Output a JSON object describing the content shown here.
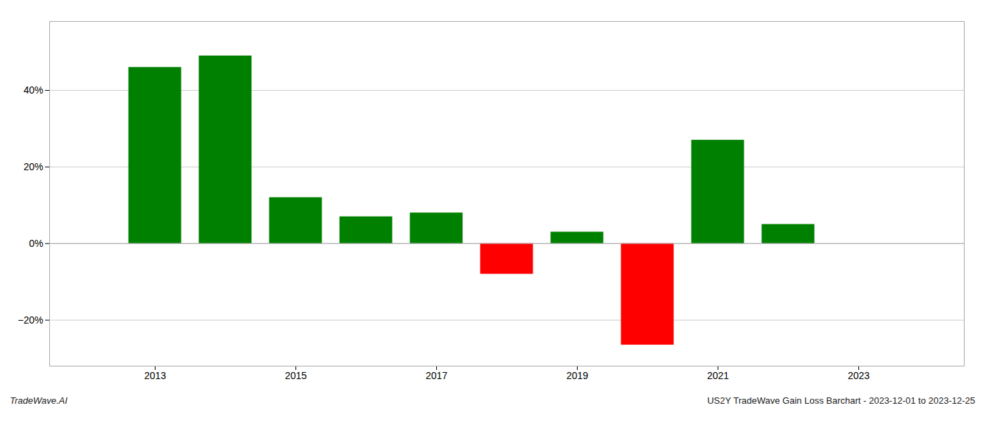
{
  "chart_data": {
    "type": "bar",
    "title": "US2Y TradeWave Gain Loss Barchart - 2023-12-01 to 2023-12-25",
    "annotations": [
      "TradeWave.AI"
    ],
    "x": [
      2013,
      2014,
      2015,
      2016,
      2017,
      2018,
      2019,
      2020,
      2021,
      2022
    ],
    "values": [
      0.46,
      0.49,
      0.12,
      0.07,
      0.08,
      -0.08,
      0.03,
      -0.265,
      0.27,
      0.05
    ],
    "colors": [
      "#008000",
      "#008000",
      "#008000",
      "#008000",
      "#008000",
      "#ff0000",
      "#008000",
      "#ff0000",
      "#008000",
      "#008000"
    ],
    "xlim": [
      2011.5,
      2024.5
    ],
    "xticks": [
      2013,
      2015,
      2017,
      2019,
      2021,
      2023
    ],
    "ylim": [
      -0.32,
      0.58
    ],
    "yticks": [
      {
        "value": -0.2,
        "label": "−20%"
      },
      {
        "value": 0.0,
        "label": "0%"
      },
      {
        "value": 0.2,
        "label": "20%"
      },
      {
        "value": 0.4,
        "label": "40%"
      }
    ],
    "grid": true
  }
}
